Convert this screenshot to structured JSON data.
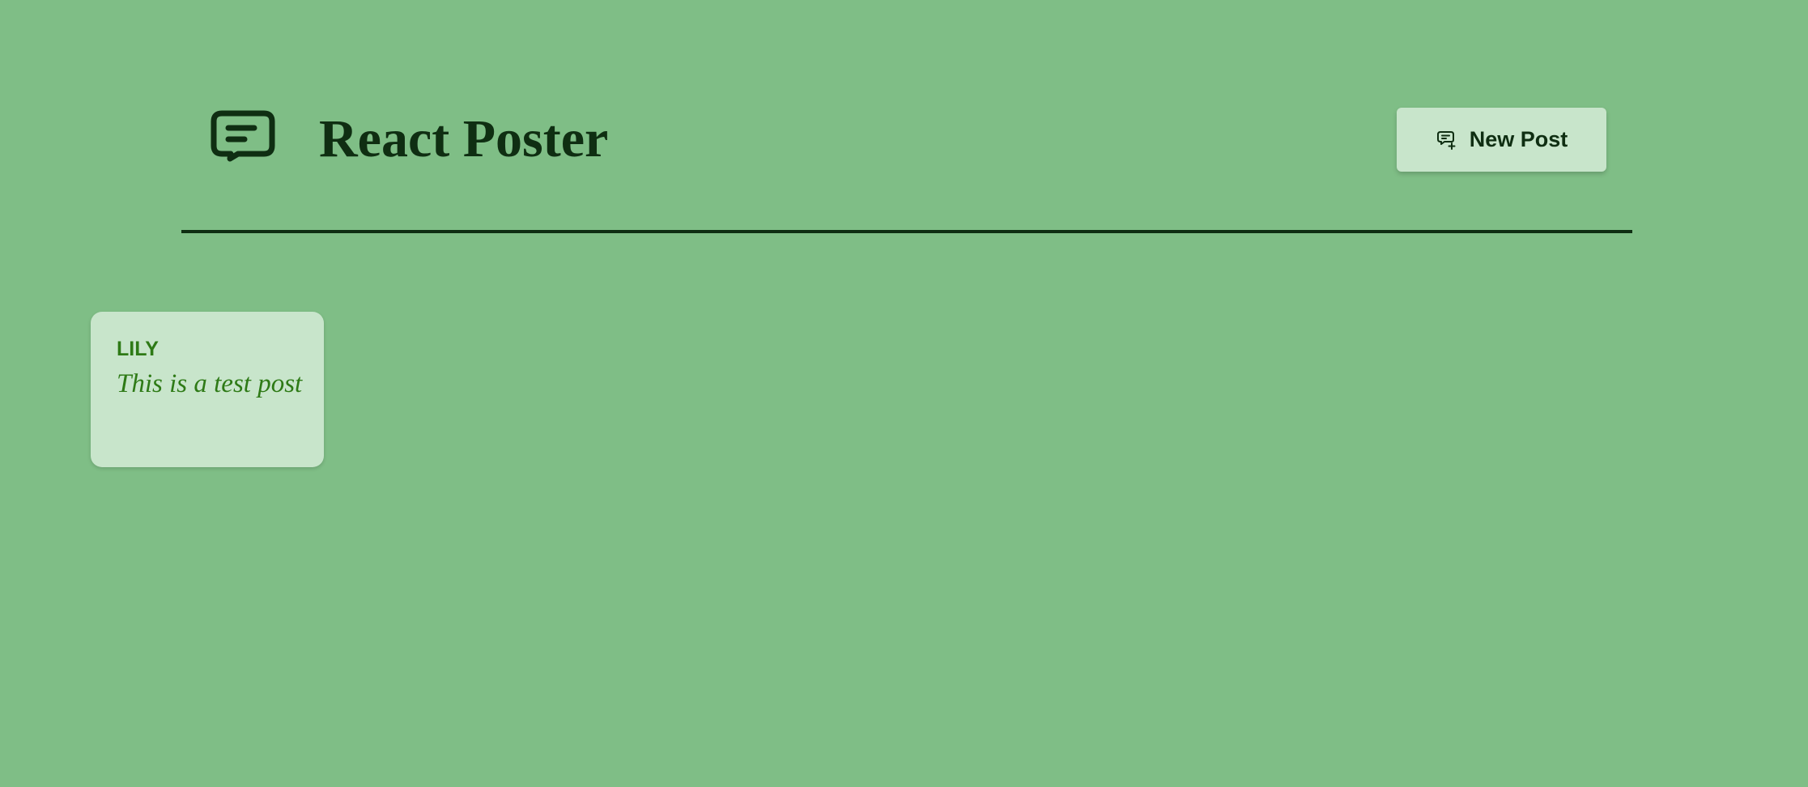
{
  "header": {
    "title": "React Poster",
    "logo_icon": "message-square-icon",
    "new_post": {
      "label": "New Post",
      "icon": "message-plus-icon"
    }
  },
  "posts": [
    {
      "author": "Lily",
      "body": "This is a test post"
    }
  ],
  "colors": {
    "background": "#7fbe86",
    "card": "#c8e5cb",
    "dark_text": "#0f2e12",
    "post_text": "#2e7a16"
  }
}
